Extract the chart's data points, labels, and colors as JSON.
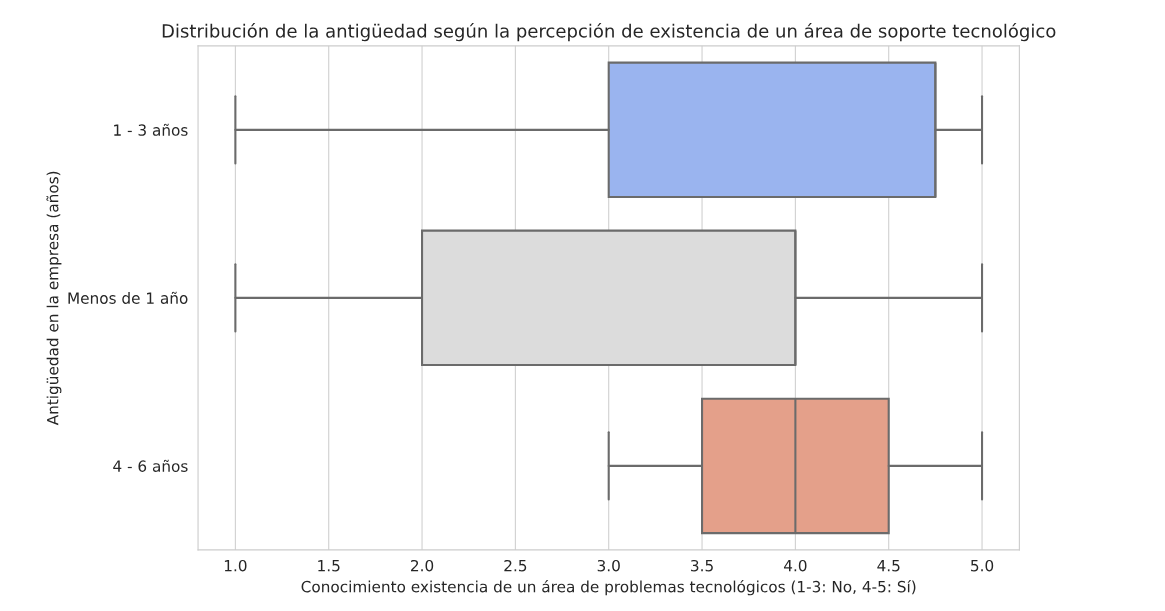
{
  "chart_data": {
    "type": "box",
    "orientation": "horizontal",
    "title": "Distribución de la antigüedad según la percepción de existencia de un área de soporte tecnológico",
    "xlabel": "Conocimiento existencia de un área de problemas tecnológicos (1-3: No, 4-5: Sí)",
    "ylabel": "Antigüedad en la empresa (años)",
    "categories": [
      "1 - 3 años",
      "Menos de 1 año",
      "4 - 6 años"
    ],
    "boxes": [
      {
        "low": 1,
        "q1": 3,
        "median": 4.75,
        "q3": 4.75,
        "high": 5
      },
      {
        "low": 1,
        "q1": 2,
        "median": 4,
        "q3": 4,
        "high": 5
      },
      {
        "low": 3,
        "q1": 3.5,
        "median": 4,
        "q3": 4.5,
        "high": 5
      }
    ],
    "colors": [
      "#9ab4ef",
      "#dcdcdc",
      "#e4a08a"
    ],
    "xlim": [
      0.8,
      5.2
    ],
    "xticks": [
      {
        "value": 1,
        "label": "1.0"
      },
      1.5,
      {
        "value": 2,
        "label": "2.0"
      },
      2.5,
      {
        "value": 3,
        "label": "3.0"
      },
      3.5,
      {
        "value": 4,
        "label": "4.0"
      },
      4.5,
      {
        "value": 5,
        "label": "5.0"
      }
    ],
    "grid": "x"
  }
}
